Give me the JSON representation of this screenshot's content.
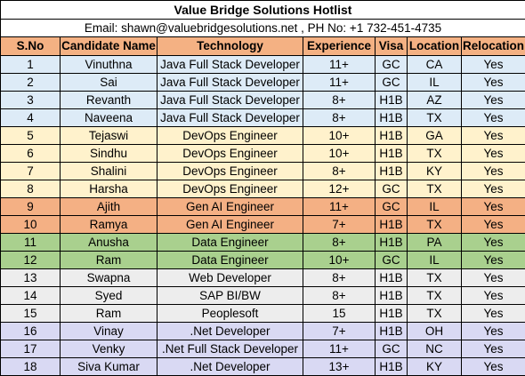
{
  "title": "Value Bridge Solutions Hotlist",
  "contact": "Email: shawn@valuebridgesolutions.net , PH No: +1 732-451-4735",
  "colors": {
    "header": "#f4b183",
    "blue": "#ddebf7",
    "yellow": "#fff2cc",
    "orange": "#f4b084",
    "green": "#a9d08e",
    "gray": "#ededed",
    "purple": "#d9d9f3"
  },
  "columns": [
    "S.No",
    "Candidate Name",
    "Technology",
    "Experience",
    "Visa",
    "Location",
    "Relocation"
  ],
  "rows": [
    {
      "sno": "1",
      "name": "Vinuthna",
      "tech": "Java Full Stack Developer",
      "exp": "11+",
      "visa": "GC",
      "loc": "CA",
      "reloc": "Yes",
      "color": "blue"
    },
    {
      "sno": "2",
      "name": "Sai",
      "tech": "Java Full Stack Developer",
      "exp": "11+",
      "visa": "GC",
      "loc": "IL",
      "reloc": "Yes",
      "color": "blue"
    },
    {
      "sno": "3",
      "name": "Revanth",
      "tech": "Java Full Stack Developer",
      "exp": "8+",
      "visa": "H1B",
      "loc": "AZ",
      "reloc": "Yes",
      "color": "blue"
    },
    {
      "sno": "4",
      "name": "Naveena",
      "tech": "Java Full Stack Developer",
      "exp": "8+",
      "visa": "H1B",
      "loc": "TX",
      "reloc": "Yes",
      "color": "blue"
    },
    {
      "sno": "5",
      "name": "Tejaswi",
      "tech": "DevOps Engineer",
      "exp": "10+",
      "visa": "H1B",
      "loc": "GA",
      "reloc": "Yes",
      "color": "yellow"
    },
    {
      "sno": "6",
      "name": "Sindhu",
      "tech": "DevOps Engineer",
      "exp": "10+",
      "visa": "H1B",
      "loc": "TX",
      "reloc": "Yes",
      "color": "yellow"
    },
    {
      "sno": "7",
      "name": "Shalini",
      "tech": "DevOps Engineer",
      "exp": "8+",
      "visa": "H1B",
      "loc": "KY",
      "reloc": "Yes",
      "color": "yellow"
    },
    {
      "sno": "8",
      "name": "Harsha",
      "tech": "DevOps Engineer",
      "exp": "12+",
      "visa": "GC",
      "loc": "TX",
      "reloc": "Yes",
      "color": "yellow"
    },
    {
      "sno": "9",
      "name": "Ajith",
      "tech": "Gen AI Engineer",
      "exp": "11+",
      "visa": "GC",
      "loc": "IL",
      "reloc": "Yes",
      "color": "orange"
    },
    {
      "sno": "10",
      "name": "Ramya",
      "tech": "Gen AI Engineer",
      "exp": "7+",
      "visa": "H1B",
      "loc": "TX",
      "reloc": "Yes",
      "color": "orange"
    },
    {
      "sno": "11",
      "name": "Anusha",
      "tech": "Data Engineer",
      "exp": "8+",
      "visa": "H1B",
      "loc": "PA",
      "reloc": "Yes",
      "color": "green"
    },
    {
      "sno": "12",
      "name": "Ram",
      "tech": "Data Engineer",
      "exp": "10+",
      "visa": "GC",
      "loc": "IL",
      "reloc": "Yes",
      "color": "green"
    },
    {
      "sno": "13",
      "name": "Swapna",
      "tech": "Web Developer",
      "exp": "8+",
      "visa": "H1B",
      "loc": "TX",
      "reloc": "Yes",
      "color": "gray"
    },
    {
      "sno": "14",
      "name": "Syed",
      "tech": "SAP BI/BW",
      "exp": "8+",
      "visa": "H1B",
      "loc": "TX",
      "reloc": "Yes",
      "color": "gray"
    },
    {
      "sno": "15",
      "name": "Ram",
      "tech": "Peoplesoft",
      "exp": "15",
      "visa": "H1B",
      "loc": "TX",
      "reloc": "Yes",
      "color": "gray"
    },
    {
      "sno": "16",
      "name": "Vinay",
      "tech": ".Net Developer",
      "exp": "7+",
      "visa": "H1B",
      "loc": "OH",
      "reloc": "Yes",
      "color": "purple"
    },
    {
      "sno": "17",
      "name": "Venky",
      "tech": ".Net Full Stack Developer",
      "exp": "11+",
      "visa": "GC",
      "loc": "NC",
      "reloc": "Yes",
      "color": "purple"
    },
    {
      "sno": "18",
      "name": "Siva Kumar",
      "tech": ".Net Developer",
      "exp": "13+",
      "visa": "H1B",
      "loc": "KY",
      "reloc": "Yes",
      "color": "purple"
    }
  ]
}
